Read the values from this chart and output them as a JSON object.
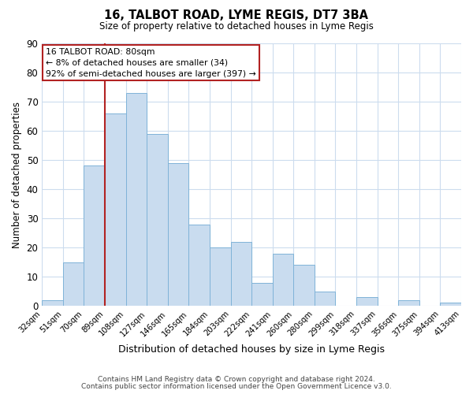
{
  "title": "16, TALBOT ROAD, LYME REGIS, DT7 3BA",
  "subtitle": "Size of property relative to detached houses in Lyme Regis",
  "xlabel": "Distribution of detached houses by size in Lyme Regis",
  "ylabel": "Number of detached properties",
  "bar_values": [
    2,
    15,
    48,
    66,
    73,
    59,
    49,
    28,
    20,
    22,
    8,
    18,
    14,
    5,
    0,
    3,
    0,
    2,
    0,
    1
  ],
  "bin_labels": [
    "32sqm",
    "51sqm",
    "70sqm",
    "89sqm",
    "108sqm",
    "127sqm",
    "146sqm",
    "165sqm",
    "184sqm",
    "203sqm",
    "222sqm",
    "241sqm",
    "260sqm",
    "280sqm",
    "299sqm",
    "318sqm",
    "337sqm",
    "356sqm",
    "375sqm",
    "394sqm",
    "413sqm"
  ],
  "bar_color": "#c9dcef",
  "bar_edge_color": "#7fb3d8",
  "ylim": [
    0,
    90
  ],
  "yticks": [
    0,
    10,
    20,
    30,
    40,
    50,
    60,
    70,
    80,
    90
  ],
  "vline_x": 3.0,
  "vline_color": "#b22222",
  "annotation_line1": "16 TALBOT ROAD: 80sqm",
  "annotation_line2": "← 8% of detached houses are smaller (34)",
  "annotation_line3": "92% of semi-detached houses are larger (397) →",
  "annotation_box_color": "#b22222",
  "footer_line1": "Contains HM Land Registry data © Crown copyright and database right 2024.",
  "footer_line2": "Contains public sector information licensed under the Open Government Licence v3.0.",
  "background_color": "#ffffff",
  "grid_color": "#ccdcee"
}
